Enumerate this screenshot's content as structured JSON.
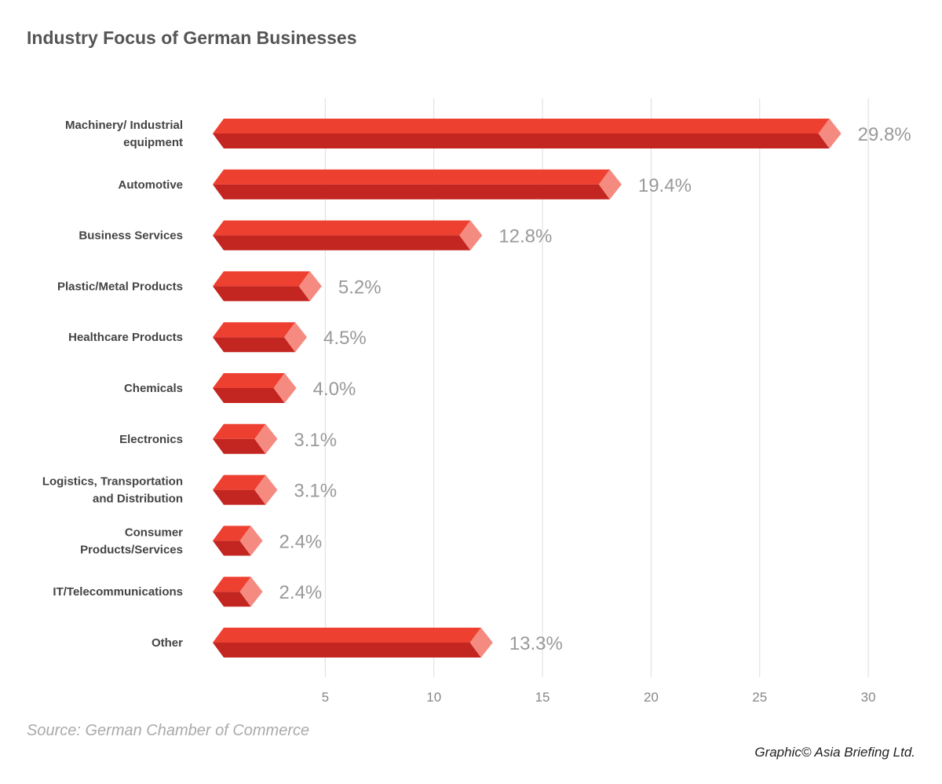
{
  "chart_data": {
    "type": "bar",
    "orientation": "horizontal",
    "title": "Industry Focus of German Businesses",
    "categories": [
      [
        "Machinery/ Industrial",
        "equipment"
      ],
      [
        "Automotive"
      ],
      [
        "Business Services"
      ],
      [
        "Plastic/Metal Products"
      ],
      [
        "Healthcare Products"
      ],
      [
        "Chemicals"
      ],
      [
        "Electronics"
      ],
      [
        "Logistics, Transportation",
        "and Distribution"
      ],
      [
        "Consumer",
        "Products/Services"
      ],
      [
        "IT/Telecommunications"
      ],
      [
        "Other"
      ]
    ],
    "values": [
      29.8,
      19.4,
      12.8,
      5.2,
      4.5,
      4.0,
      3.1,
      3.1,
      2.4,
      2.4,
      13.3
    ],
    "value_labels": [
      "29.8%",
      "19.4%",
      "12.8%",
      "5.2%",
      "4.5%",
      "4.0%",
      "3.1%",
      "3.1%",
      "2.4%",
      "2.4%",
      "13.3%"
    ],
    "xticks": [
      "5",
      "10",
      "15",
      "20",
      "25",
      "30"
    ],
    "xtick_values": [
      5,
      10,
      15,
      20,
      25,
      30
    ],
    "xlim": [
      0,
      30
    ],
    "grid": true,
    "colors": {
      "top": "#ee4030",
      "bottom": "#c32520",
      "cap": "#f58a80",
      "grid": "#dddddd"
    }
  },
  "source": "Source: German Chamber of Commerce",
  "credit": "Graphic© Asia Briefing Ltd."
}
